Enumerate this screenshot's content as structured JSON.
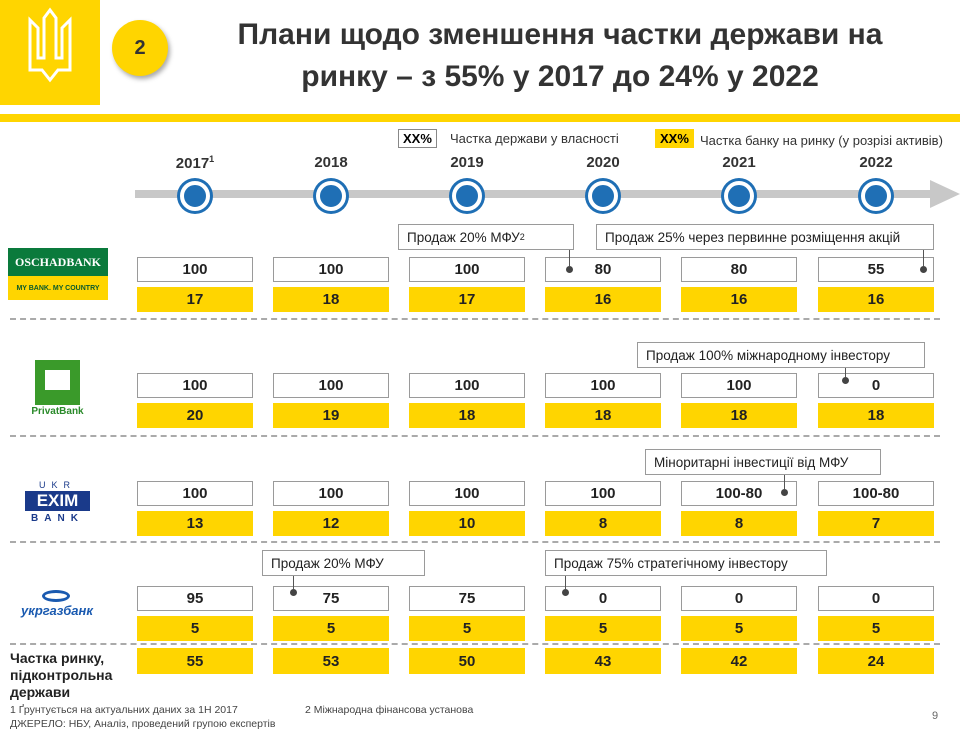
{
  "header": {
    "badge": "2",
    "title_lines": [
      "Плани щодо зменшення частки держави на",
      "ринку – з 55% у 2017 до 24% у 2022"
    ]
  },
  "legend": [
    {
      "key": "XX%",
      "label": "Частка держави у власності"
    },
    {
      "key": "XX%",
      "label": "Частка банку на ринку (у розрізі активів)"
    }
  ],
  "years": [
    "2017",
    "2018",
    "2019",
    "2020",
    "2021",
    "2022"
  ],
  "first_year_note": "1",
  "banks": [
    {
      "logo": [
        "OSCHADBANK",
        "MY BANK. MY COUNTRY"
      ],
      "state_share": [
        100,
        100,
        100,
        80,
        80,
        55
      ],
      "market_share": [
        17,
        18,
        17,
        16,
        16,
        16
      ],
      "notes": [
        {
          "text": "Продаж 20% МФУ",
          "ref": "2"
        },
        {
          "text": "Продаж 25% через первинне розміщення акцій"
        }
      ]
    },
    {
      "logo": [
        "PrivatBank"
      ],
      "state_share": [
        100,
        100,
        100,
        100,
        100,
        0
      ],
      "market_share": [
        20,
        19,
        18,
        18,
        18,
        18
      ],
      "notes": [
        {
          "text": "Продаж 100% міжнародному інвестору"
        }
      ]
    },
    {
      "logo": [
        "UKR",
        "EXIM",
        "BANK"
      ],
      "state_share": [
        100,
        100,
        100,
        100,
        "100-80",
        "100-80"
      ],
      "market_share": [
        13,
        12,
        10,
        8,
        8,
        7
      ],
      "notes": [
        {
          "text": "Міноритарні інвестиції від МФУ"
        }
      ]
    },
    {
      "logo": [
        "укргазбанк"
      ],
      "state_share": [
        95,
        75,
        75,
        0,
        0,
        0
      ],
      "market_share": [
        5,
        5,
        5,
        5,
        5,
        5
      ],
      "notes": [
        {
          "text": "Продаж 20% МФУ"
        },
        {
          "text": "Продаж 75% стратегічному інвестору"
        }
      ]
    }
  ],
  "total": {
    "label": "Частка ринку, підконтрольна держави",
    "values": [
      55,
      53,
      50,
      43,
      42,
      24
    ]
  },
  "footer": {
    "footnotes": [
      "1 Ґрунтується на актуальних даних за 1Н 2017",
      "2 Міжнародна фінансова установа"
    ],
    "source": "ДЖЕРЕЛО: НБУ, Аналіз, проведений групою експертів",
    "page": "9"
  }
}
